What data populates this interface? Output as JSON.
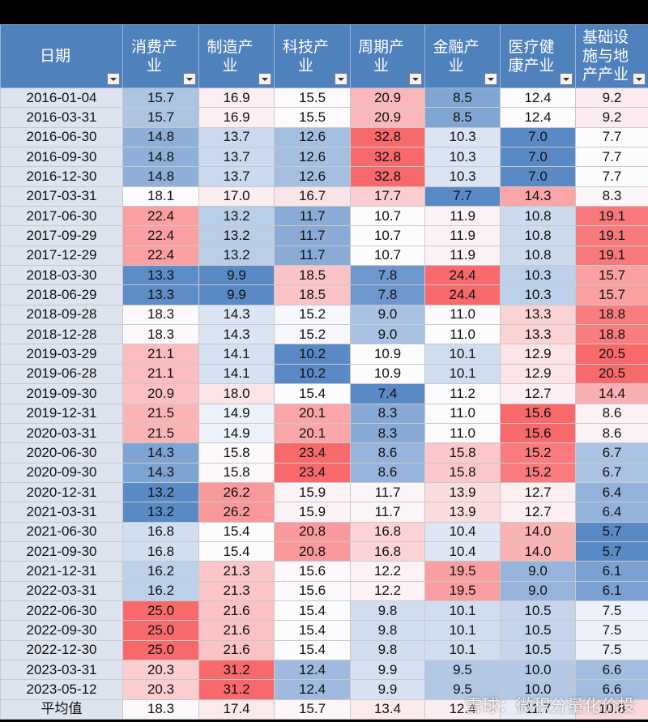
{
  "columns": [
    {
      "key": "date",
      "label": "日期"
    },
    {
      "key": "consumer",
      "label": "消费产业"
    },
    {
      "key": "manufacturing",
      "label": "制造产业"
    },
    {
      "key": "tech",
      "label": "科技产业"
    },
    {
      "key": "cyclical",
      "label": "周期产业"
    },
    {
      "key": "financial",
      "label": "金融产业"
    },
    {
      "key": "healthcare",
      "label": "医疗健康产业"
    },
    {
      "key": "infra",
      "label": "基础设施与地产产业"
    }
  ],
  "rows": [
    [
      "2016-01-04",
      "15.7",
      "16.9",
      "15.5",
      "20.9",
      "8.5",
      "12.4",
      "9.2"
    ],
    [
      "2016-03-31",
      "15.7",
      "16.9",
      "15.5",
      "20.9",
      "8.5",
      "12.4",
      "9.2"
    ],
    [
      "2016-06-30",
      "14.8",
      "13.7",
      "12.6",
      "32.8",
      "10.3",
      "7.0",
      "7.7"
    ],
    [
      "2016-09-30",
      "14.8",
      "13.7",
      "12.6",
      "32.8",
      "10.3",
      "7.0",
      "7.7"
    ],
    [
      "2016-12-30",
      "14.8",
      "13.7",
      "12.6",
      "32.8",
      "10.3",
      "7.0",
      "7.7"
    ],
    [
      "2017-03-31",
      "18.1",
      "17.0",
      "16.7",
      "17.7",
      "7.7",
      "14.3",
      "8.3"
    ],
    [
      "2017-06-30",
      "22.4",
      "13.2",
      "11.7",
      "10.7",
      "11.9",
      "10.8",
      "19.1"
    ],
    [
      "2017-09-29",
      "22.4",
      "13.2",
      "11.7",
      "10.7",
      "11.9",
      "10.8",
      "19.1"
    ],
    [
      "2017-12-29",
      "22.4",
      "13.2",
      "11.7",
      "10.7",
      "11.9",
      "10.8",
      "19.1"
    ],
    [
      "2018-03-30",
      "13.3",
      "9.9",
      "18.5",
      "7.8",
      "24.4",
      "10.3",
      "15.7"
    ],
    [
      "2018-06-29",
      "13.3",
      "9.9",
      "18.5",
      "7.8",
      "24.4",
      "10.3",
      "15.7"
    ],
    [
      "2018-09-28",
      "18.3",
      "14.3",
      "15.2",
      "9.0",
      "11.0",
      "13.3",
      "18.8"
    ],
    [
      "2018-12-28",
      "18.3",
      "14.3",
      "15.2",
      "9.0",
      "11.0",
      "13.3",
      "18.8"
    ],
    [
      "2019-03-29",
      "21.1",
      "14.1",
      "10.2",
      "10.9",
      "10.1",
      "12.9",
      "20.5"
    ],
    [
      "2019-06-28",
      "21.1",
      "14.1",
      "10.2",
      "10.9",
      "10.1",
      "12.9",
      "20.5"
    ],
    [
      "2019-09-30",
      "20.9",
      "18.0",
      "15.4",
      "7.4",
      "11.2",
      "12.7",
      "14.4"
    ],
    [
      "2019-12-31",
      "21.5",
      "14.9",
      "20.1",
      "8.3",
      "11.0",
      "15.6",
      "8.6"
    ],
    [
      "2020-03-31",
      "21.5",
      "14.9",
      "20.1",
      "8.3",
      "11.0",
      "15.6",
      "8.6"
    ],
    [
      "2020-06-30",
      "14.3",
      "15.8",
      "23.4",
      "8.6",
      "15.8",
      "15.2",
      "6.7"
    ],
    [
      "2020-09-30",
      "14.3",
      "15.8",
      "23.4",
      "8.6",
      "15.8",
      "15.2",
      "6.7"
    ],
    [
      "2020-12-31",
      "13.2",
      "26.2",
      "15.9",
      "11.7",
      "13.9",
      "12.7",
      "6.4"
    ],
    [
      "2021-03-31",
      "13.2",
      "26.2",
      "15.9",
      "11.7",
      "13.9",
      "12.7",
      "6.4"
    ],
    [
      "2021-06-30",
      "16.8",
      "15.4",
      "20.8",
      "16.8",
      "10.4",
      "14.0",
      "5.7"
    ],
    [
      "2021-09-30",
      "16.8",
      "15.4",
      "20.8",
      "16.8",
      "10.4",
      "14.0",
      "5.7"
    ],
    [
      "2021-12-31",
      "16.2",
      "21.3",
      "15.6",
      "12.2",
      "19.5",
      "9.0",
      "6.1"
    ],
    [
      "2022-03-31",
      "16.2",
      "21.3",
      "15.6",
      "12.2",
      "19.5",
      "9.0",
      "6.1"
    ],
    [
      "2022-06-30",
      "25.0",
      "21.6",
      "15.4",
      "9.8",
      "10.1",
      "10.5",
      "7.5"
    ],
    [
      "2022-09-30",
      "25.0",
      "21.6",
      "15.4",
      "9.8",
      "10.1",
      "10.5",
      "7.5"
    ],
    [
      "2022-12-30",
      "25.0",
      "21.6",
      "15.4",
      "9.8",
      "10.1",
      "10.5",
      "7.5"
    ],
    [
      "2023-03-31",
      "20.3",
      "31.2",
      "12.4",
      "9.9",
      "9.5",
      "10.0",
      "6.6"
    ],
    [
      "2023-05-12",
      "20.3",
      "31.2",
      "12.4",
      "9.9",
      "9.5",
      "10.0",
      "6.6"
    ]
  ],
  "average": [
    "平均值",
    "18.3",
    "17.4",
    "15.7",
    "13.4",
    "12.4",
    "11.7",
    "10.8"
  ],
  "watermark": "雪球：微积分量化价投",
  "colors": {
    "header_bg": "#4f81bd",
    "scale_low": "#5a8ac6",
    "scale_mid": "#fcfcff",
    "scale_high": "#f8696b",
    "date_bg": "#dde4ef"
  }
}
